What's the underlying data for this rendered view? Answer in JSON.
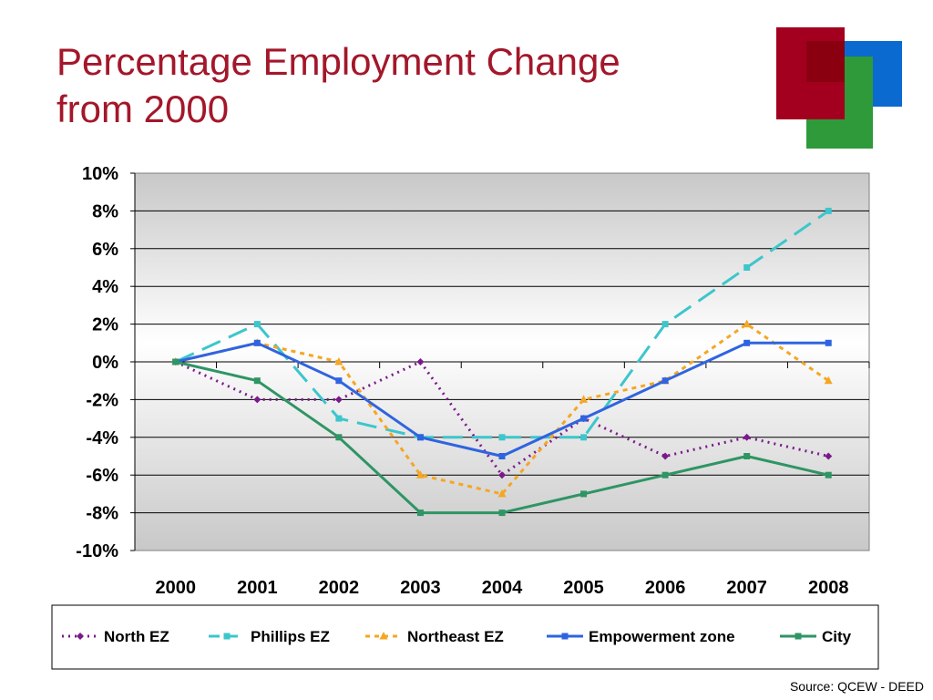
{
  "title_line1": "Percentage Employment Change",
  "title_line2": "from 2000",
  "source": "Source: QCEW - DEED",
  "chart_data": {
    "type": "line",
    "categories": [
      "2000",
      "2001",
      "2002",
      "2003",
      "2004",
      "2005",
      "2006",
      "2007",
      "2008"
    ],
    "ylim": [
      -10,
      10
    ],
    "yticks": [
      "10%",
      "8%",
      "6%",
      "4%",
      "2%",
      "0%",
      "-2%",
      "-4%",
      "-6%",
      "-8%",
      "-10%"
    ],
    "grid": true,
    "legend_position": "bottom",
    "series": [
      {
        "name": "North EZ",
        "values": [
          0,
          -2,
          -2,
          0,
          -6,
          -3,
          -5,
          -4,
          -5
        ],
        "color": "#7a1a8a",
        "dash": "2,5",
        "marker": "diamond"
      },
      {
        "name": "Phillips EZ",
        "values": [
          0,
          2,
          -3,
          -4,
          -4,
          -4,
          2,
          5,
          8
        ],
        "color": "#3cc6cc",
        "dash": "22,10",
        "marker": "square"
      },
      {
        "name": "Northeast EZ",
        "values": [
          0,
          1,
          0,
          -6,
          -7,
          -2,
          -1,
          2,
          -1
        ],
        "color": "#f5a623",
        "dash": "5,5",
        "marker": "triangle"
      },
      {
        "name": "Empowerment zone",
        "values": [
          0,
          1,
          -1,
          -4,
          -5,
          -3,
          -1,
          1,
          1
        ],
        "color": "#2f64e0",
        "dash": "",
        "marker": "square"
      },
      {
        "name": "City",
        "values": [
          0,
          -1,
          -4,
          -8,
          -8,
          -7,
          -6,
          -5,
          -6
        ],
        "color": "#2e9564",
        "dash": "",
        "marker": "square"
      }
    ]
  }
}
